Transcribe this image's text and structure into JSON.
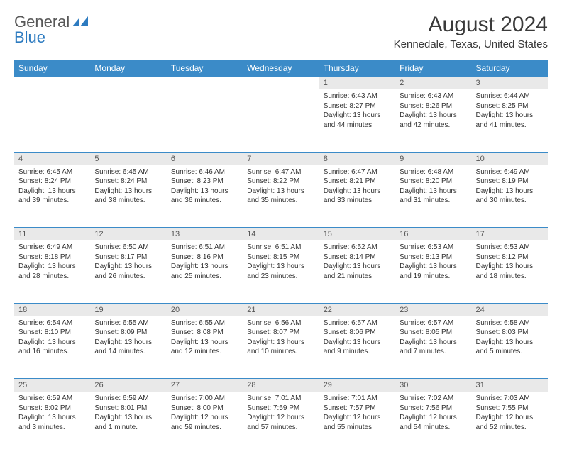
{
  "brand": {
    "name1": "General",
    "name2": "Blue"
  },
  "title": "August 2024",
  "subtitle": "Kennedale, Texas, United States",
  "colors": {
    "header_bg": "#3b8bc8",
    "header_text": "#ffffff",
    "daynum_bg": "#e9e9e9",
    "row_border": "#3b8bc8",
    "body_text": "#333333",
    "logo_blue": "#2d7bc0"
  },
  "day_headers": [
    "Sunday",
    "Monday",
    "Tuesday",
    "Wednesday",
    "Thursday",
    "Friday",
    "Saturday"
  ],
  "layout": {
    "first_weekday_index": 4,
    "days_in_month": 31
  },
  "days": [
    {
      "n": 1,
      "sunrise": "6:43 AM",
      "sunset": "8:27 PM",
      "dl": "13 hours and 44 minutes."
    },
    {
      "n": 2,
      "sunrise": "6:43 AM",
      "sunset": "8:26 PM",
      "dl": "13 hours and 42 minutes."
    },
    {
      "n": 3,
      "sunrise": "6:44 AM",
      "sunset": "8:25 PM",
      "dl": "13 hours and 41 minutes."
    },
    {
      "n": 4,
      "sunrise": "6:45 AM",
      "sunset": "8:24 PM",
      "dl": "13 hours and 39 minutes."
    },
    {
      "n": 5,
      "sunrise": "6:45 AM",
      "sunset": "8:24 PM",
      "dl": "13 hours and 38 minutes."
    },
    {
      "n": 6,
      "sunrise": "6:46 AM",
      "sunset": "8:23 PM",
      "dl": "13 hours and 36 minutes."
    },
    {
      "n": 7,
      "sunrise": "6:47 AM",
      "sunset": "8:22 PM",
      "dl": "13 hours and 35 minutes."
    },
    {
      "n": 8,
      "sunrise": "6:47 AM",
      "sunset": "8:21 PM",
      "dl": "13 hours and 33 minutes."
    },
    {
      "n": 9,
      "sunrise": "6:48 AM",
      "sunset": "8:20 PM",
      "dl": "13 hours and 31 minutes."
    },
    {
      "n": 10,
      "sunrise": "6:49 AM",
      "sunset": "8:19 PM",
      "dl": "13 hours and 30 minutes."
    },
    {
      "n": 11,
      "sunrise": "6:49 AM",
      "sunset": "8:18 PM",
      "dl": "13 hours and 28 minutes."
    },
    {
      "n": 12,
      "sunrise": "6:50 AM",
      "sunset": "8:17 PM",
      "dl": "13 hours and 26 minutes."
    },
    {
      "n": 13,
      "sunrise": "6:51 AM",
      "sunset": "8:16 PM",
      "dl": "13 hours and 25 minutes."
    },
    {
      "n": 14,
      "sunrise": "6:51 AM",
      "sunset": "8:15 PM",
      "dl": "13 hours and 23 minutes."
    },
    {
      "n": 15,
      "sunrise": "6:52 AM",
      "sunset": "8:14 PM",
      "dl": "13 hours and 21 minutes."
    },
    {
      "n": 16,
      "sunrise": "6:53 AM",
      "sunset": "8:13 PM",
      "dl": "13 hours and 19 minutes."
    },
    {
      "n": 17,
      "sunrise": "6:53 AM",
      "sunset": "8:12 PM",
      "dl": "13 hours and 18 minutes."
    },
    {
      "n": 18,
      "sunrise": "6:54 AM",
      "sunset": "8:10 PM",
      "dl": "13 hours and 16 minutes."
    },
    {
      "n": 19,
      "sunrise": "6:55 AM",
      "sunset": "8:09 PM",
      "dl": "13 hours and 14 minutes."
    },
    {
      "n": 20,
      "sunrise": "6:55 AM",
      "sunset": "8:08 PM",
      "dl": "13 hours and 12 minutes."
    },
    {
      "n": 21,
      "sunrise": "6:56 AM",
      "sunset": "8:07 PM",
      "dl": "13 hours and 10 minutes."
    },
    {
      "n": 22,
      "sunrise": "6:57 AM",
      "sunset": "8:06 PM",
      "dl": "13 hours and 9 minutes."
    },
    {
      "n": 23,
      "sunrise": "6:57 AM",
      "sunset": "8:05 PM",
      "dl": "13 hours and 7 minutes."
    },
    {
      "n": 24,
      "sunrise": "6:58 AM",
      "sunset": "8:03 PM",
      "dl": "13 hours and 5 minutes."
    },
    {
      "n": 25,
      "sunrise": "6:59 AM",
      "sunset": "8:02 PM",
      "dl": "13 hours and 3 minutes."
    },
    {
      "n": 26,
      "sunrise": "6:59 AM",
      "sunset": "8:01 PM",
      "dl": "13 hours and 1 minute."
    },
    {
      "n": 27,
      "sunrise": "7:00 AM",
      "sunset": "8:00 PM",
      "dl": "12 hours and 59 minutes."
    },
    {
      "n": 28,
      "sunrise": "7:01 AM",
      "sunset": "7:59 PM",
      "dl": "12 hours and 57 minutes."
    },
    {
      "n": 29,
      "sunrise": "7:01 AM",
      "sunset": "7:57 PM",
      "dl": "12 hours and 55 minutes."
    },
    {
      "n": 30,
      "sunrise": "7:02 AM",
      "sunset": "7:56 PM",
      "dl": "12 hours and 54 minutes."
    },
    {
      "n": 31,
      "sunrise": "7:03 AM",
      "sunset": "7:55 PM",
      "dl": "12 hours and 52 minutes."
    }
  ],
  "labels": {
    "sunrise": "Sunrise:",
    "sunset": "Sunset:",
    "daylight": "Daylight:"
  }
}
